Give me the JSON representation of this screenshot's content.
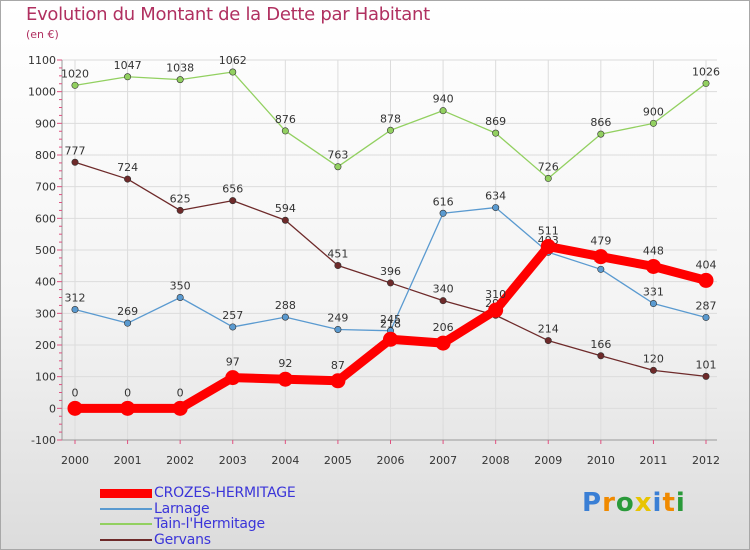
{
  "title": "Evolution du Montant de la Dette par Habitant",
  "unit": "(en €)",
  "logo": {
    "text": "Proxiti",
    "letters": [
      "P",
      "r",
      "o",
      "x",
      "i",
      "t",
      "i"
    ],
    "colors": [
      "#3a7fd5",
      "#f08a00",
      "#2a9a3a",
      "#e8c400",
      "#3a7fd5",
      "#f08a00",
      "#2a9a3a"
    ]
  },
  "chart_data": {
    "type": "line",
    "x": [
      "2000",
      "2001",
      "2002",
      "2003",
      "2004",
      "2005",
      "2006",
      "2007",
      "2008",
      "2009",
      "2010",
      "2011",
      "2012"
    ],
    "ylim": [
      -100,
      1100
    ],
    "yticks": [
      -100,
      0,
      100,
      200,
      300,
      400,
      500,
      600,
      700,
      800,
      900,
      1000,
      1100
    ],
    "grid": true,
    "legend_position": "bottom-left",
    "series": [
      {
        "name": "Tain-l'Hermitage",
        "color": "#92d060",
        "emphasis": false,
        "values": [
          1020,
          1047,
          1038,
          1062,
          876,
          763,
          878,
          940,
          869,
          726,
          866,
          900,
          1026
        ]
      },
      {
        "name": "Gervans",
        "color": "#6e2a2a",
        "emphasis": false,
        "values": [
          777,
          724,
          625,
          656,
          594,
          451,
          396,
          340,
          294,
          214,
          166,
          120,
          101
        ]
      },
      {
        "name": "Larnage",
        "color": "#5a9ad0",
        "emphasis": false,
        "values": [
          312,
          269,
          350,
          257,
          288,
          249,
          245,
          616,
          634,
          493,
          439,
          331,
          287
        ]
      },
      {
        "name": "CROZES-HERMITAGE",
        "color": "#ff0000",
        "emphasis": true,
        "values": [
          0,
          0,
          0,
          97,
          92,
          87,
          218,
          206,
          310,
          511,
          479,
          448,
          404
        ]
      }
    ],
    "legend_order": [
      "CROZES-HERMITAGE",
      "Larnage",
      "Tain-l'Hermitage",
      "Gervans"
    ]
  }
}
